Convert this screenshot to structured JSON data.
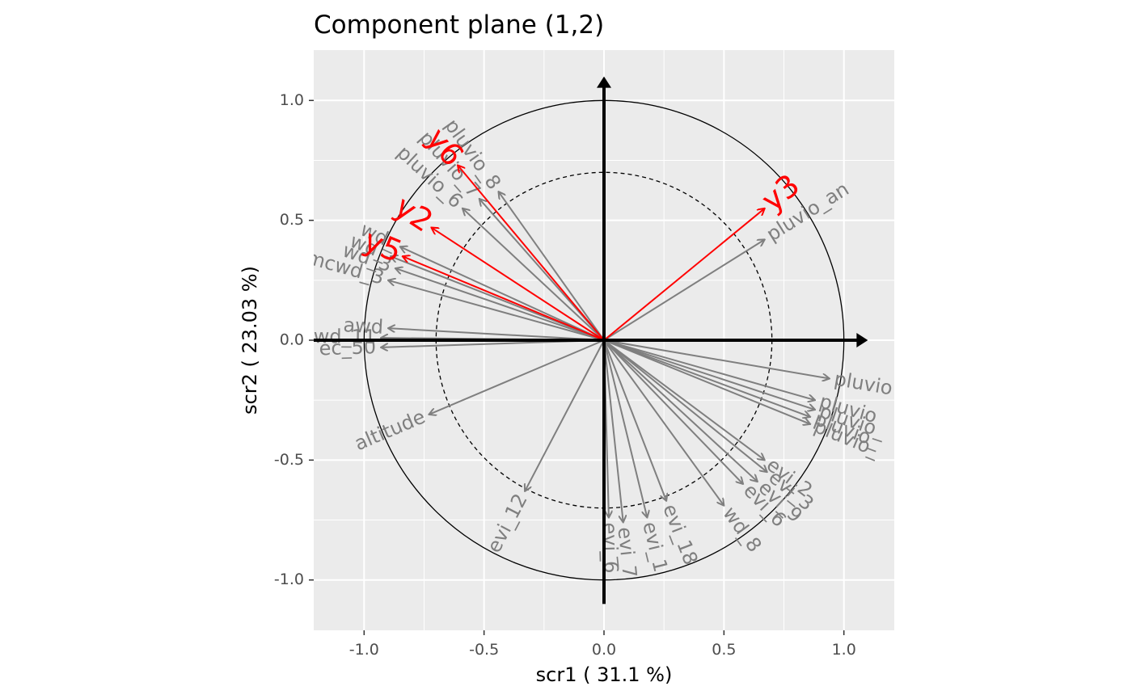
{
  "chart_data": {
    "type": "scatter",
    "title": "Component plane (1,2)",
    "xlabel": "scr1 ( 31.1 %)",
    "ylabel": "scr2 ( 23.03 %)",
    "xlim": [
      -1.21,
      1.21
    ],
    "ylim": [
      -1.21,
      1.21
    ],
    "x_ticks": [
      {
        "value": -1.0,
        "label": "-1.0"
      },
      {
        "value": -0.5,
        "label": "-0.5"
      },
      {
        "value": 0.0,
        "label": "0.0"
      },
      {
        "value": 0.5,
        "label": "0.5"
      },
      {
        "value": 1.0,
        "label": "1.0"
      }
    ],
    "y_ticks": [
      {
        "value": 1.0,
        "label": "1.0"
      },
      {
        "value": 0.5,
        "label": "0.5"
      },
      {
        "value": 0.0,
        "label": "0.0"
      },
      {
        "value": -0.5,
        "label": "-0.5"
      },
      {
        "value": -1.0,
        "label": "-1.0"
      }
    ],
    "grid": true,
    "unit_circle_radius": 1.0,
    "inner_circle_radius": 0.7,
    "variables": [
      {
        "label": "pluvio_an",
        "x": 0.67,
        "y": 0.42
      },
      {
        "label": "pluvio_8",
        "x": -0.44,
        "y": 0.62
      },
      {
        "label": "pluvio_7",
        "x": -0.52,
        "y": 0.59
      },
      {
        "label": "pluvio_6",
        "x": -0.59,
        "y": 0.55
      },
      {
        "label": "wd_",
        "x": -0.85,
        "y": 0.39
      },
      {
        "label": "wd_",
        "x": -0.89,
        "y": 0.35
      },
      {
        "label": "wd_3",
        "x": -0.87,
        "y": 0.3
      },
      {
        "label": "mcwd_3",
        "x": -0.9,
        "y": 0.25
      },
      {
        "label": "awd",
        "x": -0.9,
        "y": 0.05
      },
      {
        "label": "wd_11",
        "x": -0.93,
        "y": 0.01
      },
      {
        "label": "ec_50",
        "x": -0.93,
        "y": -0.03
      },
      {
        "label": "altitude",
        "x": -0.73,
        "y": -0.31
      },
      {
        "label": "evi_12",
        "x": -0.33,
        "y": -0.63
      },
      {
        "label": "evi_6",
        "x": 0.02,
        "y": -0.74
      },
      {
        "label": "evi_7",
        "x": 0.08,
        "y": -0.76
      },
      {
        "label": "evi_1",
        "x": 0.18,
        "y": -0.74
      },
      {
        "label": "evi_18",
        "x": 0.26,
        "y": -0.67
      },
      {
        "label": "wd_8",
        "x": 0.5,
        "y": -0.69
      },
      {
        "label": "evi_6",
        "x": 0.58,
        "y": -0.6
      },
      {
        "label": "evi_9",
        "x": 0.64,
        "y": -0.59
      },
      {
        "label": "evi_3",
        "x": 0.68,
        "y": -0.55
      },
      {
        "label": "evi_2",
        "x": 0.67,
        "y": -0.5
      },
      {
        "label": "pluvio",
        "x": 0.94,
        "y": -0.16
      },
      {
        "label": "pluvio",
        "x": 0.88,
        "y": -0.25
      },
      {
        "label": "pluvio_",
        "x": 0.88,
        "y": -0.29
      },
      {
        "label": "pluvio_",
        "x": 0.86,
        "y": -0.32
      },
      {
        "label": "pluvio_",
        "x": 0.86,
        "y": -0.35
      }
    ],
    "supplementary": [
      {
        "label": "y3",
        "x": 0.67,
        "y": 0.55
      },
      {
        "label": "y6",
        "x": -0.61,
        "y": 0.73
      },
      {
        "label": "y2",
        "x": -0.72,
        "y": 0.47
      },
      {
        "label": "y5",
        "x": -0.84,
        "y": 0.35
      }
    ]
  }
}
